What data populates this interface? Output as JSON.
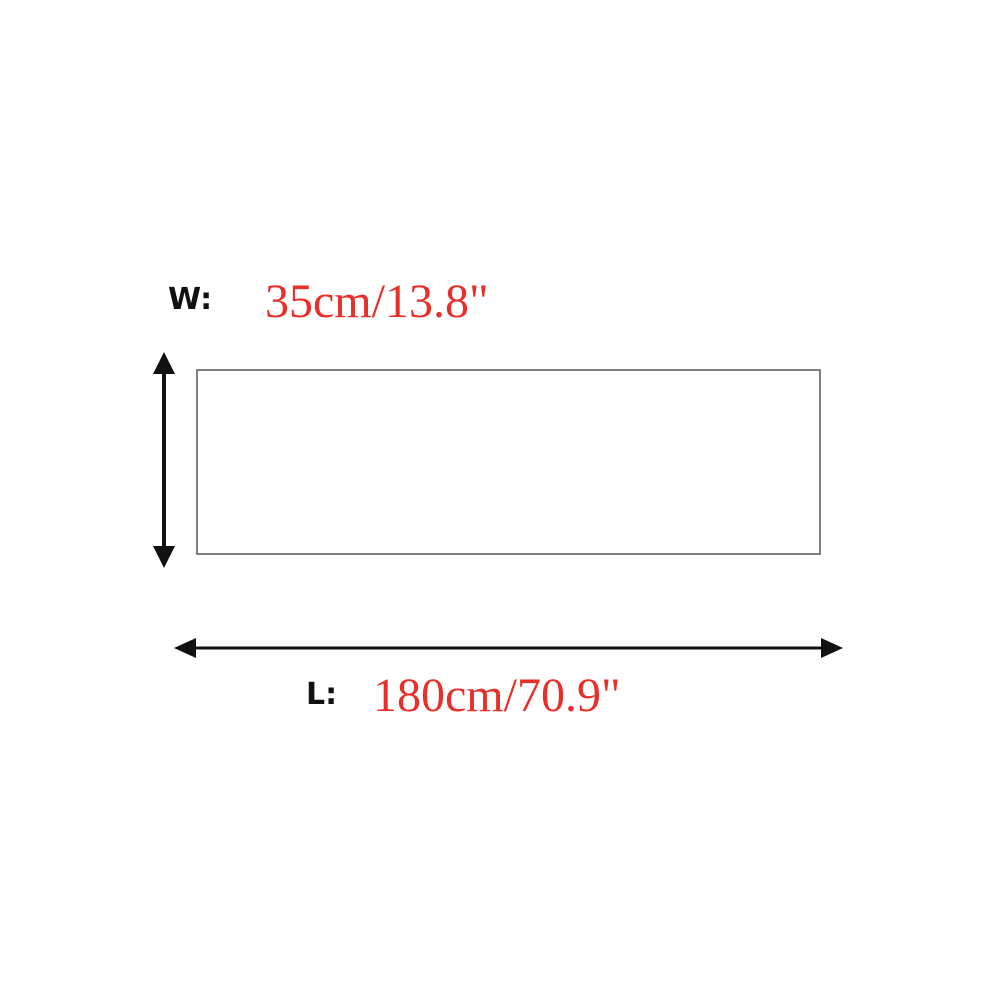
{
  "colors": {
    "value_text": "#e8302a",
    "line": "#111111",
    "outline": "#555555"
  },
  "width": {
    "key": "W:",
    "value": "35cm/13.8\""
  },
  "length": {
    "key": "L:",
    "value": "180cm/70.9\""
  },
  "icons": [
    "vertical-double-arrow-icon",
    "horizontal-double-arrow-icon"
  ]
}
